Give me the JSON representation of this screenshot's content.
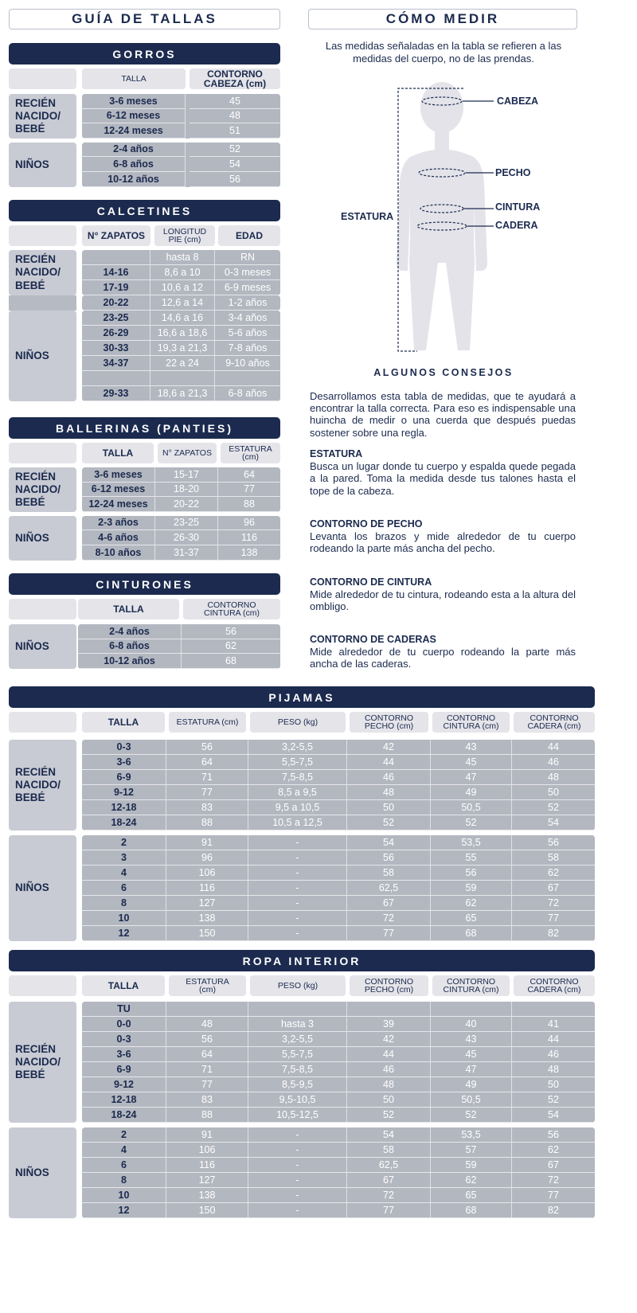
{
  "left_title": "GUÍA DE TALLAS",
  "right_title": "CÓMO MEDIR",
  "intro": "Las medidas señaladas en la tabla se refieren a las medidas del cuerpo, no de las prendas.",
  "figure": {
    "labels": {
      "cabeza": "CABEZA",
      "pecho": "PECHO",
      "cintura": "CINTURA",
      "cadera": "CADERA",
      "estatura": "ESTATURA"
    }
  },
  "tips": {
    "title": "ALGUNOS CONSEJOS",
    "intro": "Desarrollamos esta tabla de medidas, que te ayudará a encontrar la talla correcta. Para eso es indispensable una huincha de medir o una cuerda que después puedas sostener sobre una regla.",
    "items": [
      {
        "heading": "ESTATURA",
        "text": "Busca un lugar donde tu cuerpo y espalda quede pegada a la pared. Toma la medida desde tus talones hasta el tope de la cabeza."
      },
      {
        "heading": "CONTORNO DE PECHO",
        "text": "Levanta los brazos y mide alrededor de tu cuerpo rodeando la parte más ancha del pecho."
      },
      {
        "heading": "CONTORNO DE CINTURA",
        "text": "Mide alrededor de tu cintura, rodeando esta a la altura del ombligo."
      },
      {
        "heading": "CONTORNO DE CADERAS",
        "text": "Mide alrededor de tu cuerpo rodeando la parte más ancha de las caderas."
      }
    ]
  },
  "tables": {
    "gorros": {
      "title": "GORROS",
      "headers": [
        "TALLA",
        "CONTORNO\nCABEZA (cm)"
      ],
      "groups": [
        {
          "label": "RECIÉN\nNACIDO/\nBEBÉ",
          "rows": [
            [
              "3-6 meses",
              "45"
            ],
            [
              "6-12 meses",
              "48"
            ],
            [
              "12-24 meses",
              "51"
            ]
          ]
        },
        {
          "label": "NIÑOS",
          "rows": [
            [
              "2-4 años",
              "52"
            ],
            [
              "6-8 años",
              "54"
            ],
            [
              "10-12 años",
              "56"
            ]
          ]
        }
      ]
    },
    "calcetines": {
      "title": "CALCETINES",
      "headers": [
        "N° ZAPATOS",
        "LONGITUD\nPIE (cm)",
        "EDAD"
      ],
      "groups": [
        {
          "label": "RECIÉN\nNACIDO/\nBEBÉ",
          "rows": [
            [
              "",
              "hasta 8",
              "RN"
            ],
            [
              "14-16",
              "8,6 a 10",
              "0-3 meses"
            ],
            [
              "17-19",
              "10,6 a 12",
              "6-9 meses"
            ]
          ]
        },
        {
          "label": "",
          "rows": [
            [
              "20-22",
              "12,6 a 14",
              "1-2 años"
            ]
          ]
        },
        {
          "label": "NIÑOS",
          "rows": [
            [
              "23-25",
              "14,6 a 16",
              "3-4 años"
            ],
            [
              "26-29",
              "16,6 a 18,6",
              "5-6 años"
            ],
            [
              "30-33",
              "19,3 a 21,3",
              "7-8 años"
            ],
            [
              "34-37",
              "22 a 24",
              "9-10 años"
            ],
            [
              "",
              "",
              ""
            ],
            [
              "29-33",
              "18,6 a 21,3",
              "6-8 años"
            ]
          ]
        }
      ]
    },
    "ballerinas": {
      "title": "BALLERINAS (PANTIES)",
      "headers": [
        "TALLA",
        "N° ZAPATOS",
        "ESTATURA\n(cm)"
      ],
      "groups": [
        {
          "label": "RECIÉN\nNACIDO/\nBEBÉ",
          "rows": [
            [
              "3-6 meses",
              "15-17",
              "64"
            ],
            [
              "6-12 meses",
              "18-20",
              "77"
            ],
            [
              "12-24 meses",
              "20-22",
              "88"
            ]
          ]
        },
        {
          "label": "NIÑOS",
          "rows": [
            [
              "2-3 años",
              "23-25",
              "96"
            ],
            [
              "4-6 años",
              "26-30",
              "116"
            ],
            [
              "8-10 años",
              "31-37",
              "138"
            ]
          ]
        }
      ]
    },
    "cinturones": {
      "title": "CINTURONES",
      "headers": [
        "TALLA",
        "CONTORNO\nCINTURA (cm)"
      ],
      "groups": [
        {
          "label": "NIÑOS",
          "rows": [
            [
              "2-4 años",
              "56"
            ],
            [
              "6-8 años",
              "62"
            ],
            [
              "10-12 años",
              "68"
            ]
          ]
        }
      ]
    },
    "pijamas": {
      "title": "PIJAMAS",
      "headers": [
        "TALLA",
        "ESTATURA (cm)",
        "PESO (kg)",
        "CONTORNO\nPECHO (cm)",
        "CONTORNO\nCINTURA (cm)",
        "CONTORNO\nCADERA (cm)"
      ],
      "groups": [
        {
          "label": "RECIÉN\nNACIDO/\nBEBÉ",
          "rows": [
            [
              "0-3",
              "56",
              "3,2-5,5",
              "42",
              "43",
              "44"
            ],
            [
              "3-6",
              "64",
              "5,5-7,5",
              "44",
              "45",
              "46"
            ],
            [
              "6-9",
              "71",
              "7,5-8,5",
              "46",
              "47",
              "48"
            ],
            [
              "9-12",
              "77",
              "8,5 a 9,5",
              "48",
              "49",
              "50"
            ],
            [
              "12-18",
              "83",
              "9,5 a 10,5",
              "50",
              "50,5",
              "52"
            ],
            [
              "18-24",
              "88",
              "10,5 a 12,5",
              "52",
              "52",
              "54"
            ]
          ]
        },
        {
          "label": "NIÑOS",
          "rows": [
            [
              "2",
              "91",
              "-",
              "54",
              "53,5",
              "56"
            ],
            [
              "3",
              "96",
              "-",
              "56",
              "55",
              "58"
            ],
            [
              "4",
              "106",
              "-",
              "58",
              "56",
              "62"
            ],
            [
              "6",
              "116",
              "-",
              "62,5",
              "59",
              "67"
            ],
            [
              "8",
              "127",
              "-",
              "67",
              "62",
              "72"
            ],
            [
              "10",
              "138",
              "-",
              "72",
              "65",
              "77"
            ],
            [
              "12",
              "150",
              "-",
              "77",
              "68",
              "82"
            ]
          ]
        }
      ]
    },
    "ropa_interior": {
      "title": "ROPA INTERIOR",
      "headers": [
        "TALLA",
        "ESTATURA\n(cm)",
        "PESO (kg)",
        "CONTORNO\nPECHO (cm)",
        "CONTORNO\nCINTURA (cm)",
        "CONTORNO\nCADERA (cm)"
      ],
      "groups": [
        {
          "label": "RECIÉN\nNACIDO/\nBEBÉ",
          "rows": [
            [
              "TU",
              "",
              "",
              "",
              "",
              ""
            ],
            [
              "0-0",
              "48",
              "hasta 3",
              "39",
              "40",
              "41"
            ],
            [
              "0-3",
              "56",
              "3,2-5,5",
              "42",
              "43",
              "44"
            ],
            [
              "3-6",
              "64",
              "5,5-7,5",
              "44",
              "45",
              "46"
            ],
            [
              "6-9",
              "71",
              "7,5-8,5",
              "46",
              "47",
              "48"
            ],
            [
              "9-12",
              "77",
              "8,5-9,5",
              "48",
              "49",
              "50"
            ],
            [
              "12-18",
              "83",
              "9,5-10,5",
              "50",
              "50,5",
              "52"
            ],
            [
              "18-24",
              "88",
              "10,5-12,5",
              "52",
              "52",
              "54"
            ]
          ]
        },
        {
          "label": "NIÑOS",
          "rows": [
            [
              "2",
              "91",
              "-",
              "54",
              "53,5",
              "56"
            ],
            [
              "4",
              "106",
              "-",
              "58",
              "57",
              "62"
            ],
            [
              "6",
              "116",
              "-",
              "62,5",
              "59",
              "67"
            ],
            [
              "8",
              "127",
              "-",
              "67",
              "62",
              "72"
            ],
            [
              "10",
              "138",
              "-",
              "72",
              "65",
              "77"
            ],
            [
              "12",
              "150",
              "-",
              "77",
              "68",
              "82"
            ]
          ]
        }
      ]
    }
  }
}
